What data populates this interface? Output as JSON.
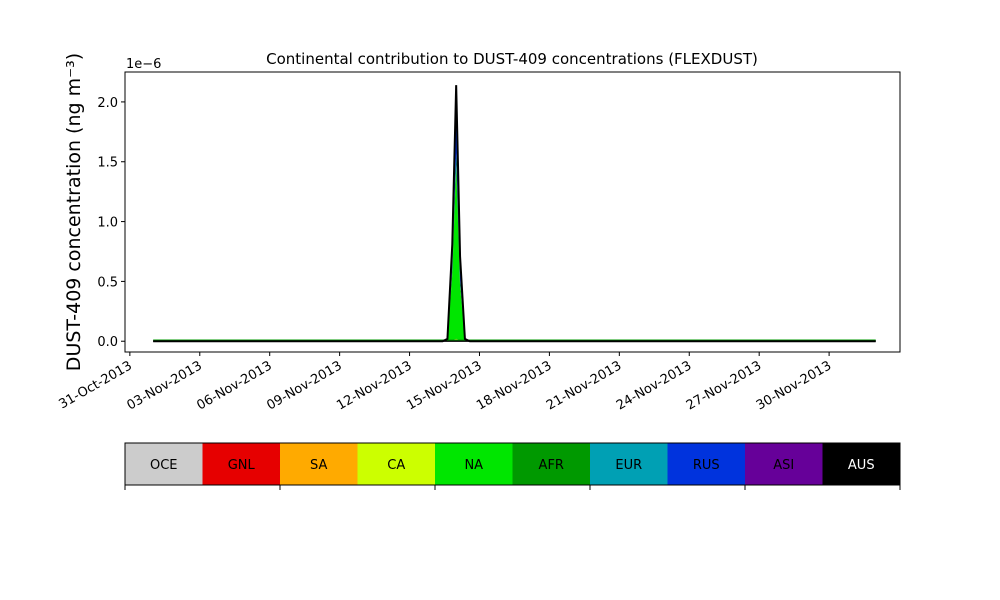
{
  "chart_data": {
    "type": "area",
    "title": "Continental contribution to DUST-409 concentrations (FLEXDUST)",
    "ylabel": "DUST-409 concentration (ng m⁻³)",
    "xlabel": "",
    "y_scale_label": "1e−6",
    "y_multiplier": 1e-06,
    "ylim": [
      -0.09,
      2.25
    ],
    "xlim": [
      "2013-10-30 19:00",
      "2013-12-03 01:00"
    ],
    "x_ticks": [
      "31-Oct-2013",
      "03-Nov-2013",
      "06-Nov-2013",
      "09-Nov-2013",
      "12-Nov-2013",
      "15-Nov-2013",
      "18-Nov-2013",
      "21-Nov-2013",
      "24-Nov-2013",
      "27-Nov-2013",
      "30-Nov-2013"
    ],
    "y_ticks": [
      "0.0",
      "0.5",
      "1.0",
      "1.5",
      "2.0"
    ],
    "x_range_data": [
      "2013-11-01 00:00",
      "2013-12-02 00:00"
    ],
    "stack_note_x": [
      "2013-11-13 10:00",
      "2013-11-13 15:00",
      "2013-11-13 20:00",
      "2013-11-14 00:00",
      "2013-11-14 04:00",
      "2013-11-14 09:00",
      "2013-11-14 14:00"
    ],
    "series": [
      {
        "name": "OCE",
        "color": "#cccccc",
        "values": [
          0,
          0,
          0,
          0,
          0,
          0,
          0
        ]
      },
      {
        "name": "GNL",
        "color": "#e60000",
        "values": [
          0,
          0,
          0,
          0,
          0,
          0,
          0
        ]
      },
      {
        "name": "SA",
        "color": "#ffaa00",
        "values": [
          0,
          0,
          0,
          0,
          0,
          0,
          0
        ]
      },
      {
        "name": "CA",
        "color": "#ccff00",
        "values": [
          0,
          0,
          0.01,
          0.02,
          0.01,
          0,
          0
        ]
      },
      {
        "name": "NA",
        "color": "#00e600",
        "values": [
          0,
          0.02,
          0.55,
          1.45,
          0.45,
          0.02,
          0
        ]
      },
      {
        "name": "AFR",
        "color": "#009900",
        "values": [
          0,
          0,
          0.05,
          0.1,
          0.05,
          0,
          0
        ]
      },
      {
        "name": "EUR",
        "color": "#00a0b4",
        "values": [
          0,
          0,
          0,
          0,
          0,
          0,
          0
        ]
      },
      {
        "name": "RUS",
        "color": "#0033dd",
        "values": [
          0,
          0,
          0.2,
          0.55,
          0.2,
          0,
          0
        ]
      },
      {
        "name": "ASI",
        "color": "#660099",
        "values": [
          0,
          0,
          0,
          0,
          0,
          0,
          0
        ]
      },
      {
        "name": "AUS",
        "color": "#000000",
        "values": [
          0,
          0,
          0,
          0,
          0,
          0,
          0
        ]
      }
    ],
    "total_line_color": "#000000",
    "legend_position": "bottom"
  },
  "legend_text_colors": [
    "#000000",
    "#000000",
    "#000000",
    "#000000",
    "#000000",
    "#000000",
    "#000000",
    "#000000",
    "#000000",
    "#ffffff"
  ]
}
